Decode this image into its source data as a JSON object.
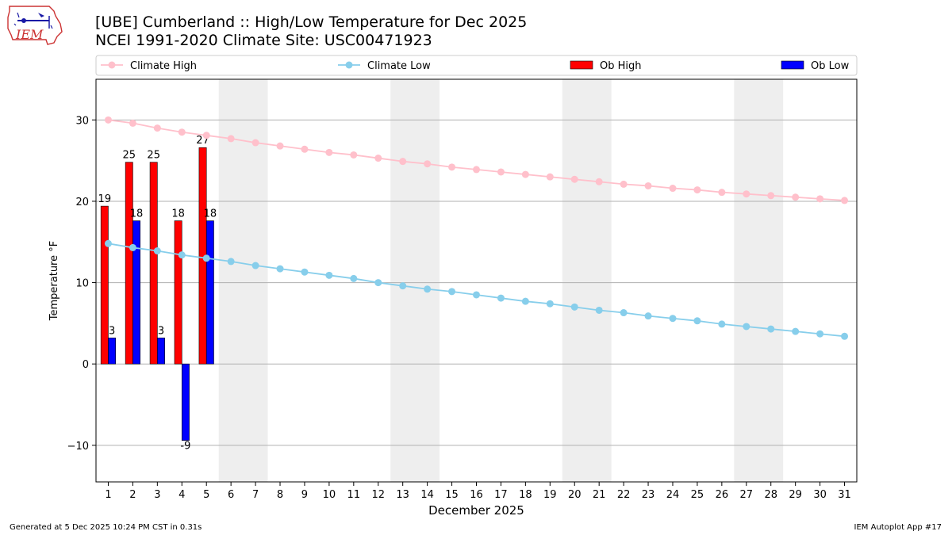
{
  "header": {
    "title_line1": "[UBE] Cumberland :: High/Low Temperature for Dec 2025",
    "title_line2": "NCEI 1991-2020 Climate Site: USC00471923",
    "logo_text": "IEM"
  },
  "footer": {
    "generated": "Generated at 5 Dec 2025 10:24 PM CST in 0.31s",
    "app": "IEM Autoplot App #17"
  },
  "chart_data": {
    "type": "bar",
    "xlabel": "December 2025",
    "ylabel": "Temperature °F",
    "xlim": [
      0.5,
      31.5
    ],
    "ylim": [
      -14.5,
      35
    ],
    "yticks": [
      -10,
      0,
      10,
      20,
      30
    ],
    "grid": "horizontal",
    "legend_placement": "top",
    "weekend_shading": [
      [
        5.5,
        7.5
      ],
      [
        12.5,
        14.5
      ],
      [
        19.5,
        21.5
      ],
      [
        26.5,
        28.5
      ]
    ],
    "days": [
      1,
      2,
      3,
      4,
      5,
      6,
      7,
      8,
      9,
      10,
      11,
      12,
      13,
      14,
      15,
      16,
      17,
      18,
      19,
      20,
      21,
      22,
      23,
      24,
      25,
      26,
      27,
      28,
      29,
      30,
      31
    ],
    "series": [
      {
        "name": "Climate High",
        "kind": "line",
        "color": "#ffc0cb",
        "values": [
          30.0,
          29.6,
          29.0,
          28.5,
          28.1,
          27.7,
          27.2,
          26.8,
          26.4,
          26.0,
          25.7,
          25.3,
          24.9,
          24.6,
          24.2,
          23.9,
          23.6,
          23.3,
          23.0,
          22.7,
          22.4,
          22.1,
          21.9,
          21.6,
          21.4,
          21.1,
          20.9,
          20.7,
          20.5,
          20.3,
          20.1
        ]
      },
      {
        "name": "Climate Low",
        "kind": "line",
        "color": "#87ceeb",
        "values": [
          14.8,
          14.3,
          13.9,
          13.4,
          13.0,
          12.6,
          12.1,
          11.7,
          11.3,
          10.9,
          10.5,
          10.0,
          9.6,
          9.2,
          8.9,
          8.5,
          8.1,
          7.7,
          7.4,
          7.0,
          6.6,
          6.3,
          5.9,
          5.6,
          5.3,
          4.9,
          4.6,
          4.3,
          4.0,
          3.7,
          3.4
        ]
      },
      {
        "name": "Ob High",
        "kind": "bar",
        "color": "#ff0000",
        "values": [
          19.4,
          24.8,
          24.8,
          17.6,
          26.6
        ],
        "labels": [
          "19",
          "25",
          "25",
          "18",
          "27"
        ]
      },
      {
        "name": "Ob Low",
        "kind": "bar",
        "color": "#0000ff",
        "values": [
          3.2,
          17.6,
          3.2,
          -9.4,
          17.6
        ],
        "labels": [
          "3",
          "18",
          "3",
          "-9",
          "18"
        ]
      }
    ]
  }
}
